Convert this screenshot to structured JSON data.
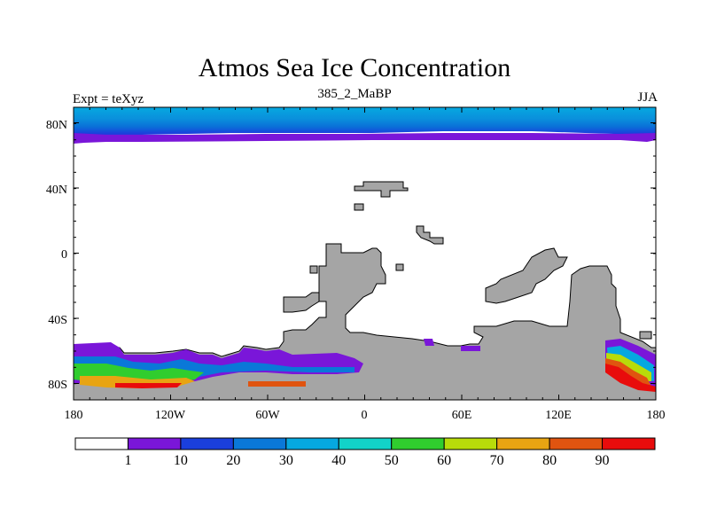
{
  "title": "Atmos Sea Ice Concentration",
  "subtitle": "385_2_MaBP",
  "left_string": "Expt = teXyz",
  "right_string": "JJA",
  "map": {
    "x_ticks": [
      "180",
      "120W",
      "60W",
      "0",
      "60E",
      "120E",
      "180"
    ],
    "y_ticks": [
      "80N",
      "40N",
      "0",
      "40S",
      "80S"
    ],
    "land_color": "#a5a5a5"
  },
  "colorbar": {
    "labels": [
      "1",
      "10",
      "20",
      "30",
      "40",
      "50",
      "60",
      "70",
      "80",
      "90"
    ],
    "colors": [
      "#ffffff",
      "#7a16d9",
      "#1a3fdc",
      "#0a78d8",
      "#06a8e0",
      "#12d2c8",
      "#30cd2e",
      "#b8dc0a",
      "#e8a412",
      "#e05410",
      "#e80c0c"
    ]
  }
}
